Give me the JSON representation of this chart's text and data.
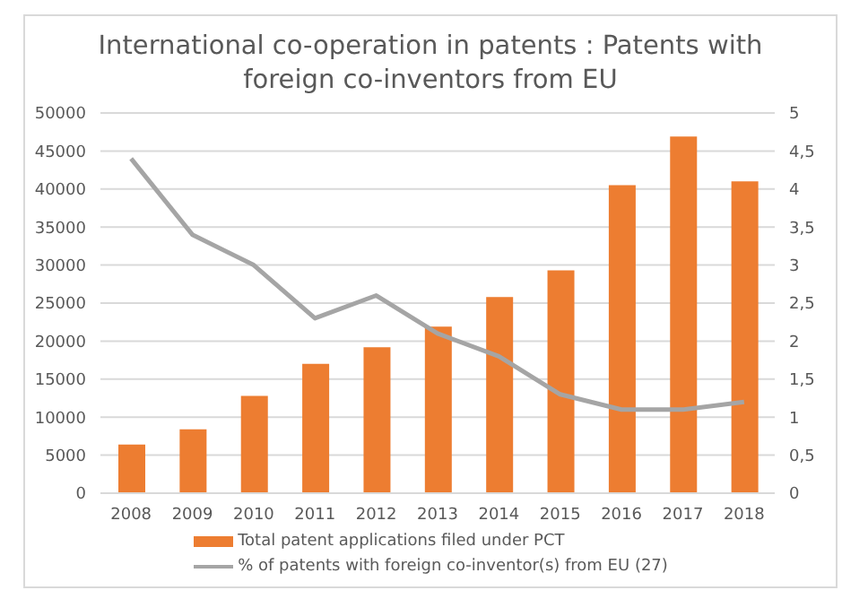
{
  "chart_data": {
    "type": "bar",
    "title": "International co-operation in patents : Patents with foreign co-inventors from EU",
    "categories": [
      "2008",
      "2009",
      "2010",
      "2011",
      "2012",
      "2013",
      "2014",
      "2015",
      "2016",
      "2017",
      "2018"
    ],
    "series": [
      {
        "name": "Total patent applications filed under PCT",
        "color": "#ed7d31",
        "values": [
          6400,
          8400,
          12800,
          17000,
          19200,
          21900,
          25800,
          29300,
          40500,
          46900,
          41000
        ]
      },
      {
        "name": "% of patents with foreign co-inventor(s) from EU (27)",
        "type": "line",
        "axis": "y2",
        "color": "#a5a5a5",
        "values": [
          4.4,
          3.4,
          3.0,
          2.3,
          2.6,
          2.1,
          1.8,
          1.3,
          1.1,
          1.1,
          1.2
        ]
      }
    ],
    "ylim": [
      0,
      50000
    ],
    "yticks": [
      0,
      5000,
      10000,
      15000,
      20000,
      25000,
      30000,
      35000,
      40000,
      45000,
      50000
    ],
    "y2lim": [
      0,
      5
    ],
    "y2ticks": [
      0,
      {
        "value": 0.5,
        "label": "0,5"
      },
      1,
      {
        "value": 1.5,
        "label": "1,5"
      },
      2,
      {
        "value": 2.5,
        "label": "2,5"
      },
      3,
      {
        "value": 3.5,
        "label": "3,5"
      },
      4,
      {
        "value": 4.5,
        "label": "4,5"
      },
      5
    ],
    "grid": "y",
    "legend": "bottom",
    "marker": "none",
    "line_style": "solid"
  }
}
